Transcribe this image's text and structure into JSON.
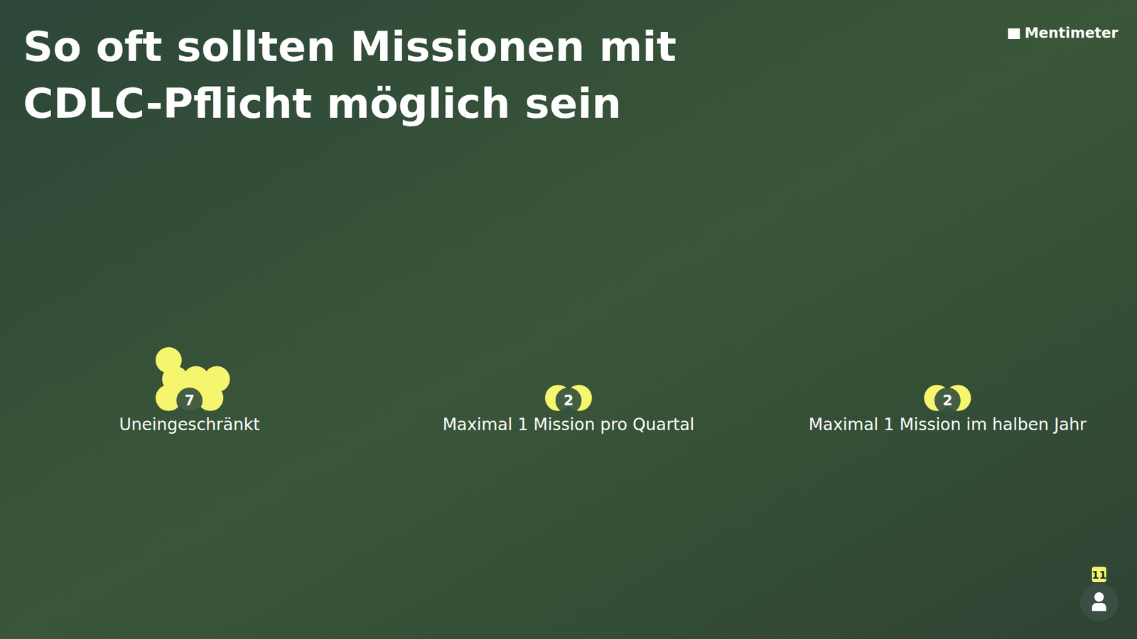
{
  "chart_data": {
    "type": "dot",
    "title": "So oft sollten Missionen mit CDLC-Pflicht möglich sein",
    "categories": [
      "Uneingeschränkt",
      "Maximal 1 Mission pro Quartal",
      "Maximal 1 Mission im halben Jahr"
    ],
    "values": [
      7,
      2,
      2
    ],
    "color": "#f6f56e",
    "data_labels": true,
    "tick_labels": "x",
    "brand": "Mentimeter",
    "participants": 11
  }
}
